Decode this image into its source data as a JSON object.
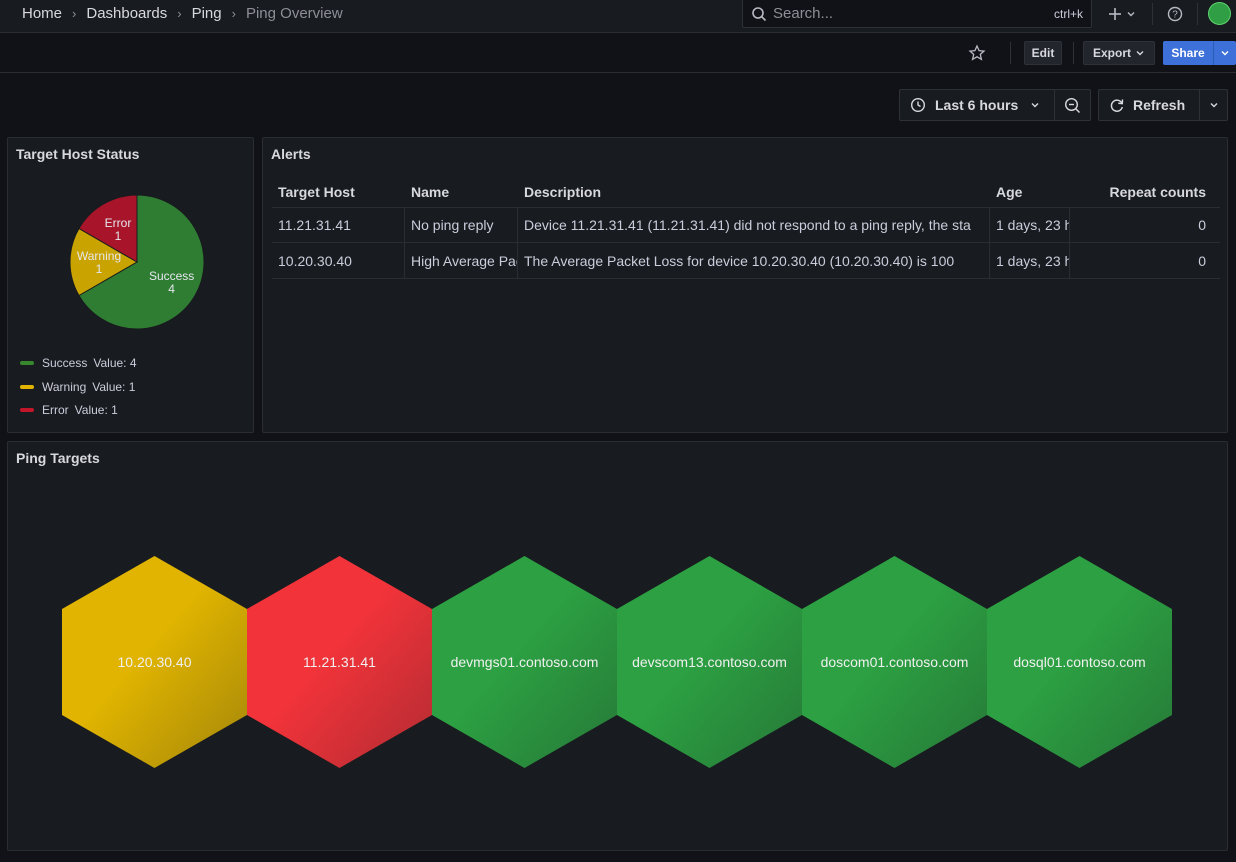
{
  "breadcrumb": [
    "Home",
    "Dashboards",
    "Ping",
    "Ping Overview"
  ],
  "search": {
    "placeholder": "Search...",
    "shortcut": "ctrl+k"
  },
  "toolbar": {
    "edit": "Edit",
    "export": "Export",
    "share": "Share"
  },
  "time": {
    "range": "Last 6 hours",
    "refresh": "Refresh"
  },
  "status_panel": {
    "title": "Target Host Status",
    "slices": [
      {
        "label": "Success",
        "value": 4,
        "color": "#2f7d32"
      },
      {
        "label": "Warning",
        "value": 1,
        "color": "#c9a400"
      },
      {
        "label": "Error",
        "value": 1,
        "color": "#a8152a"
      }
    ],
    "legend": [
      {
        "name": "Success",
        "text": "Value: 4",
        "color": "#37872d"
      },
      {
        "name": "Warning",
        "text": "Value: 1",
        "color": "#e0b400"
      },
      {
        "name": "Error",
        "text": "Value: 1",
        "color": "#c4162a"
      }
    ]
  },
  "alerts": {
    "title": "Alerts",
    "columns": [
      "Target Host",
      "Name",
      "Description",
      "Age",
      "Repeat counts"
    ],
    "rows": [
      [
        "11.21.31.41",
        "No ping reply",
        "Device 11.21.31.41 (11.21.31.41) did not respond to a ping reply, the sta",
        "1 days, 23 h",
        "0"
      ],
      [
        "10.20.30.40",
        "High Average Packet Loss",
        "The Average Packet Loss for device 10.20.30.40 (10.20.30.40) is 100",
        "1 days, 23 h",
        "0"
      ]
    ]
  },
  "ping_targets": {
    "title": "Ping Targets",
    "hosts": [
      {
        "name": "10.20.30.40",
        "color": "#e0b400"
      },
      {
        "name": "11.21.31.41",
        "color": "#f2333a"
      },
      {
        "name": "devmgs01.contoso.com",
        "color": "#2ca042"
      },
      {
        "name": "devscom13.contoso.com",
        "color": "#2ca042"
      },
      {
        "name": "doscom01.contoso.com",
        "color": "#2ca042"
      },
      {
        "name": "dosql01.contoso.com",
        "color": "#2ca042"
      }
    ]
  }
}
